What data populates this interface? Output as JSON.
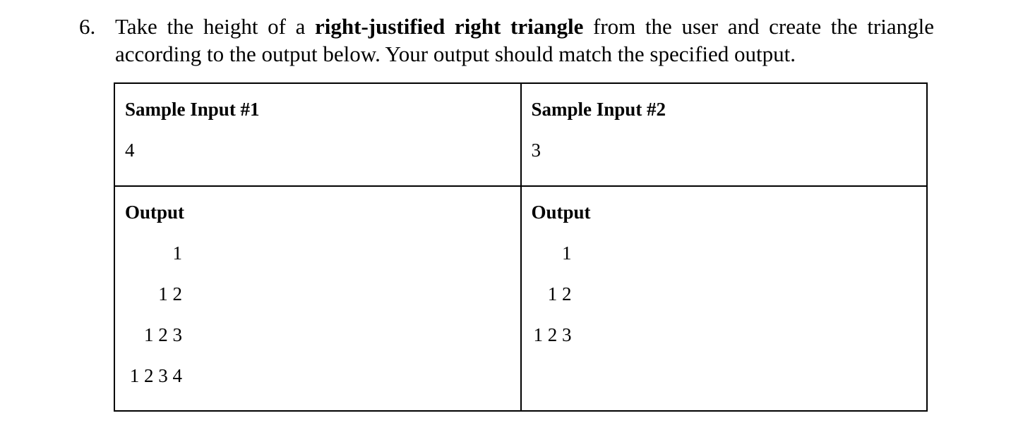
{
  "question": {
    "number": "6.",
    "line1": {
      "before": "Take the height of a ",
      "bold": "right-justified right triangle",
      "after": " from the user and create the triangle"
    },
    "line2": "according to the output below. Your output should match the specified output."
  },
  "table": {
    "columns": [
      {
        "input_title": "Sample Input #1",
        "input_value": "4",
        "output_title": "Output",
        "output_rows": [
          "1",
          "1 2",
          "1 2 3",
          "1 2 3 4"
        ]
      },
      {
        "input_title": "Sample Input #2",
        "input_value": "3",
        "output_title": "Output",
        "output_rows": [
          "1",
          "1 2",
          "1 2 3"
        ]
      }
    ]
  }
}
